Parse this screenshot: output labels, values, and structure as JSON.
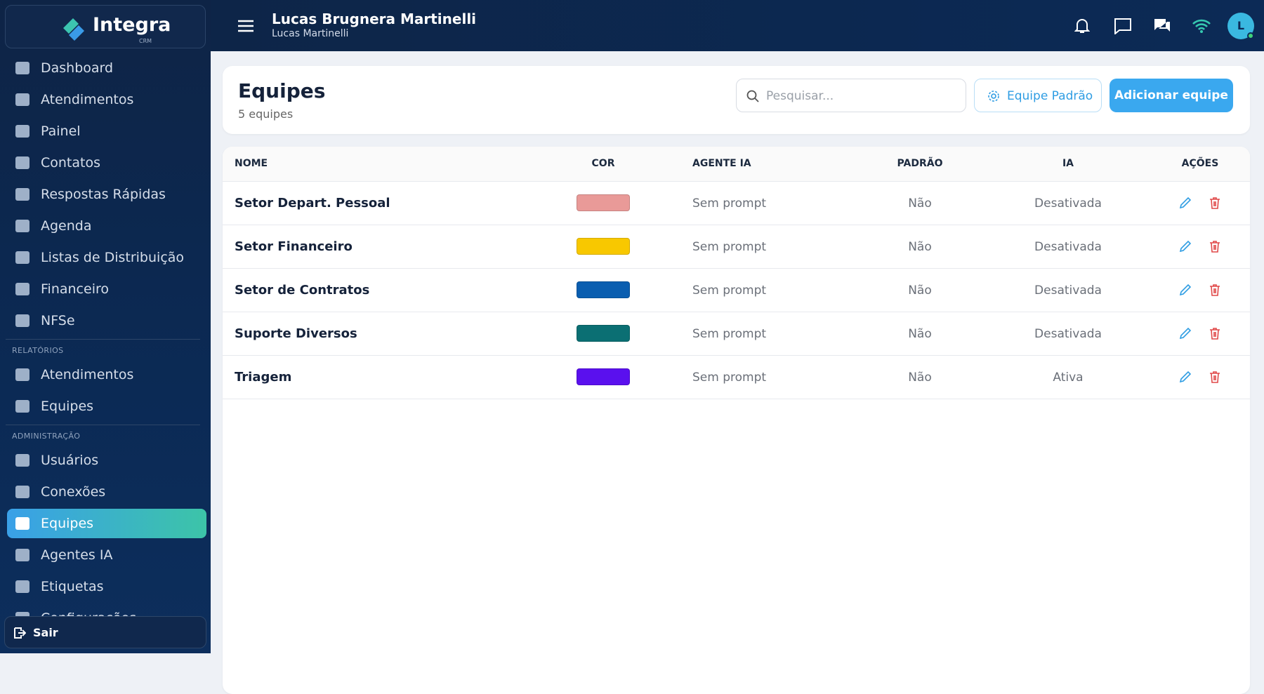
{
  "sidebar": {
    "logo": "Integra",
    "logo_sub": "CRM",
    "main": [
      "Dashboard",
      "Atendimentos",
      "Painel",
      "Contatos",
      "Respostas Rápidas",
      "Agenda",
      "Listas de Distribuição",
      "Financeiro",
      "NFSe"
    ],
    "reports_title": "RELATÓRIOS",
    "reports": [
      "Atendimentos",
      "Equipes"
    ],
    "admin_title": "ADMINISTRAÇÃO",
    "admin": [
      "Usuários",
      "Conexões",
      "Equipes",
      "Agentes IA",
      "Etiquetas",
      "Configurações"
    ],
    "active": "Equipes",
    "logout": "Sair"
  },
  "header": {
    "user_name": "Lucas Brugnera Martinelli",
    "user_sub": "Lucas Martinelli",
    "avatar": "L"
  },
  "page": {
    "title": "Equipes",
    "count": "5 equipes",
    "search_placeholder": "Pesquisar...",
    "default_button": "Equipe Padrão",
    "add_button": "Adicionar equipe"
  },
  "table": {
    "headers": [
      "NOME",
      "COR",
      "AGENTE IA",
      "PADRÃO",
      "IA",
      "AÇÕES"
    ],
    "rows": [
      {
        "name": "Setor Depart. Pessoal",
        "color": "#e99a98",
        "agent": "Sem prompt",
        "default": "Não",
        "ia": "Desativada"
      },
      {
        "name": "Setor Financeiro",
        "color": "#f8c800",
        "agent": "Sem prompt",
        "default": "Não",
        "ia": "Desativada"
      },
      {
        "name": "Setor de Contratos",
        "color": "#0a5eb0",
        "agent": "Sem prompt",
        "default": "Não",
        "ia": "Desativada"
      },
      {
        "name": "Suporte Diversos",
        "color": "#0b6f73",
        "agent": "Sem prompt",
        "default": "Não",
        "ia": "Desativada"
      },
      {
        "name": "Triagem",
        "color": "#5a10ee",
        "agent": "Sem prompt",
        "default": "Não",
        "ia": "Ativa"
      }
    ]
  }
}
